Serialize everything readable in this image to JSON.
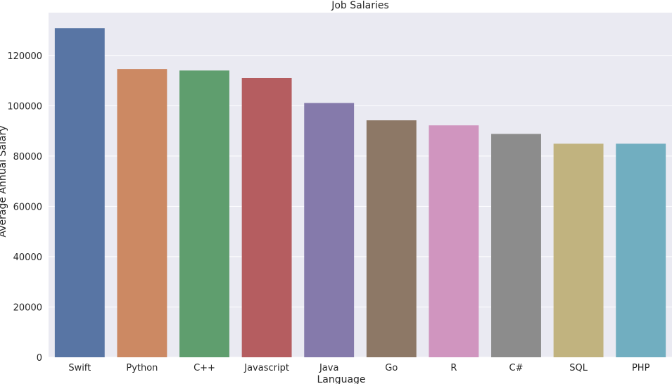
{
  "chart_data": {
    "type": "bar",
    "title": "Job Salaries",
    "xlabel": "Language",
    "ylabel": "Average Annual Salary",
    "categories": [
      "Swift",
      "Python",
      "C++",
      "Javascript",
      "Java",
      "Go",
      "R",
      "C#",
      "SQL",
      "PHP"
    ],
    "values": [
      130800,
      114600,
      114000,
      111000,
      101100,
      94200,
      92200,
      88800,
      84900,
      84900
    ],
    "ylim": [
      0,
      137000
    ],
    "yticks": [
      0,
      20000,
      40000,
      60000,
      80000,
      100000,
      120000
    ],
    "ytick_labels": [
      "0",
      "20000",
      "40000",
      "60000",
      "80000",
      "100000",
      "120000"
    ],
    "grid": true,
    "colors": {
      "background": "#eaeaf2",
      "grid": "#ffffff",
      "bars": [
        "#5875a4",
        "#cc8963",
        "#5f9e6e",
        "#b55d60",
        "#857aab",
        "#8d7866",
        "#d095bf",
        "#8c8c8c",
        "#c1b37f",
        "#71aec0"
      ]
    }
  }
}
